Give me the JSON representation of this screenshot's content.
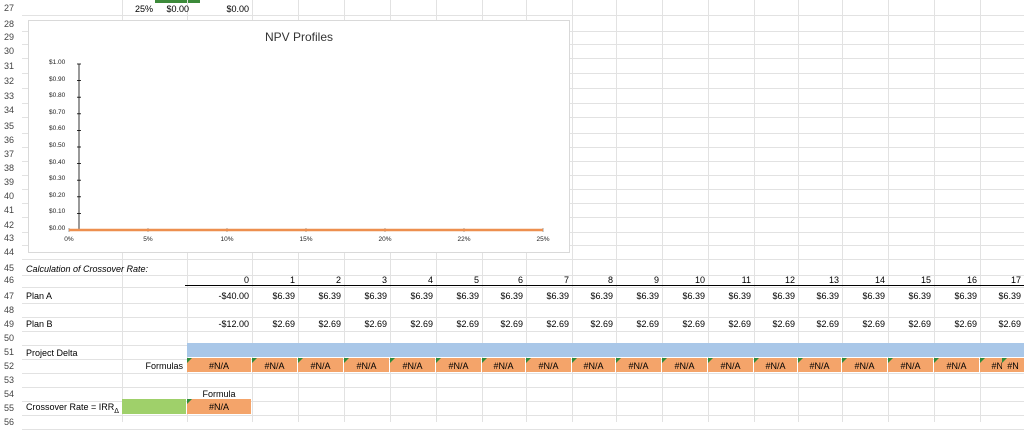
{
  "rows": [
    "27",
    "28",
    "29",
    "30",
    "31",
    "32",
    "33",
    "34",
    "35",
    "36",
    "37",
    "38",
    "39",
    "40",
    "41",
    "42",
    "43",
    "44",
    "45",
    "46",
    "47",
    "48",
    "49",
    "50",
    "51",
    "52",
    "53",
    "54",
    "55",
    "56"
  ],
  "row27": {
    "rate": "25%",
    "val1": "$0.00",
    "val2": "$0.00"
  },
  "chart": {
    "title": "NPV Profiles",
    "y_ticks": [
      "$1.00",
      "$0.90",
      "$0.80",
      "$0.70",
      "$0.60",
      "$0.50",
      "$0.40",
      "$0.30",
      "$0.20",
      "$0.10",
      "$0.00"
    ],
    "x_ticks": [
      "0%",
      "5%",
      "10%",
      "15%",
      "20%",
      "22%",
      "25%"
    ],
    "line_color": "#ed8f4f"
  },
  "chart_data": {
    "type": "line",
    "title": "NPV Profiles",
    "x": [
      "0%",
      "5%",
      "10%",
      "15%",
      "20%",
      "22%",
      "25%"
    ],
    "series": [
      {
        "values": [
          0,
          0,
          0,
          0,
          0,
          0,
          0
        ]
      }
    ],
    "ylim": [
      0,
      1.0
    ],
    "grid": false
  },
  "section": {
    "title": "Calculation of Crossover Rate:"
  },
  "years": [
    "0",
    "1",
    "2",
    "3",
    "4",
    "5",
    "6",
    "7",
    "8",
    "9",
    "10",
    "11",
    "12",
    "13",
    "14",
    "15",
    "16",
    "17"
  ],
  "planA": {
    "label": "Plan A",
    "values": [
      "-$40.00",
      "$6.39",
      "$6.39",
      "$6.39",
      "$6.39",
      "$6.39",
      "$6.39",
      "$6.39",
      "$6.39",
      "$6.39",
      "$6.39",
      "$6.39",
      "$6.39",
      "$6.39",
      "$6.39",
      "$6.39",
      "$6.39",
      "$6.39"
    ]
  },
  "planB": {
    "label": "Plan B",
    "values": [
      "-$12.00",
      "$2.69",
      "$2.69",
      "$2.69",
      "$2.69",
      "$2.69",
      "$2.69",
      "$2.69",
      "$2.69",
      "$2.69",
      "$2.69",
      "$2.69",
      "$2.69",
      "$2.69",
      "$2.69",
      "$2.69",
      "$2.69",
      "$2.69"
    ]
  },
  "delta": {
    "label": "Project Delta",
    "formulas_label": "Formulas",
    "na": "#N/A",
    "last": "#N"
  },
  "crossover": {
    "label": "Crossover Rate = IRR",
    "subscript": "Δ",
    "formula_label": "Formula",
    "na": "#N/A"
  }
}
